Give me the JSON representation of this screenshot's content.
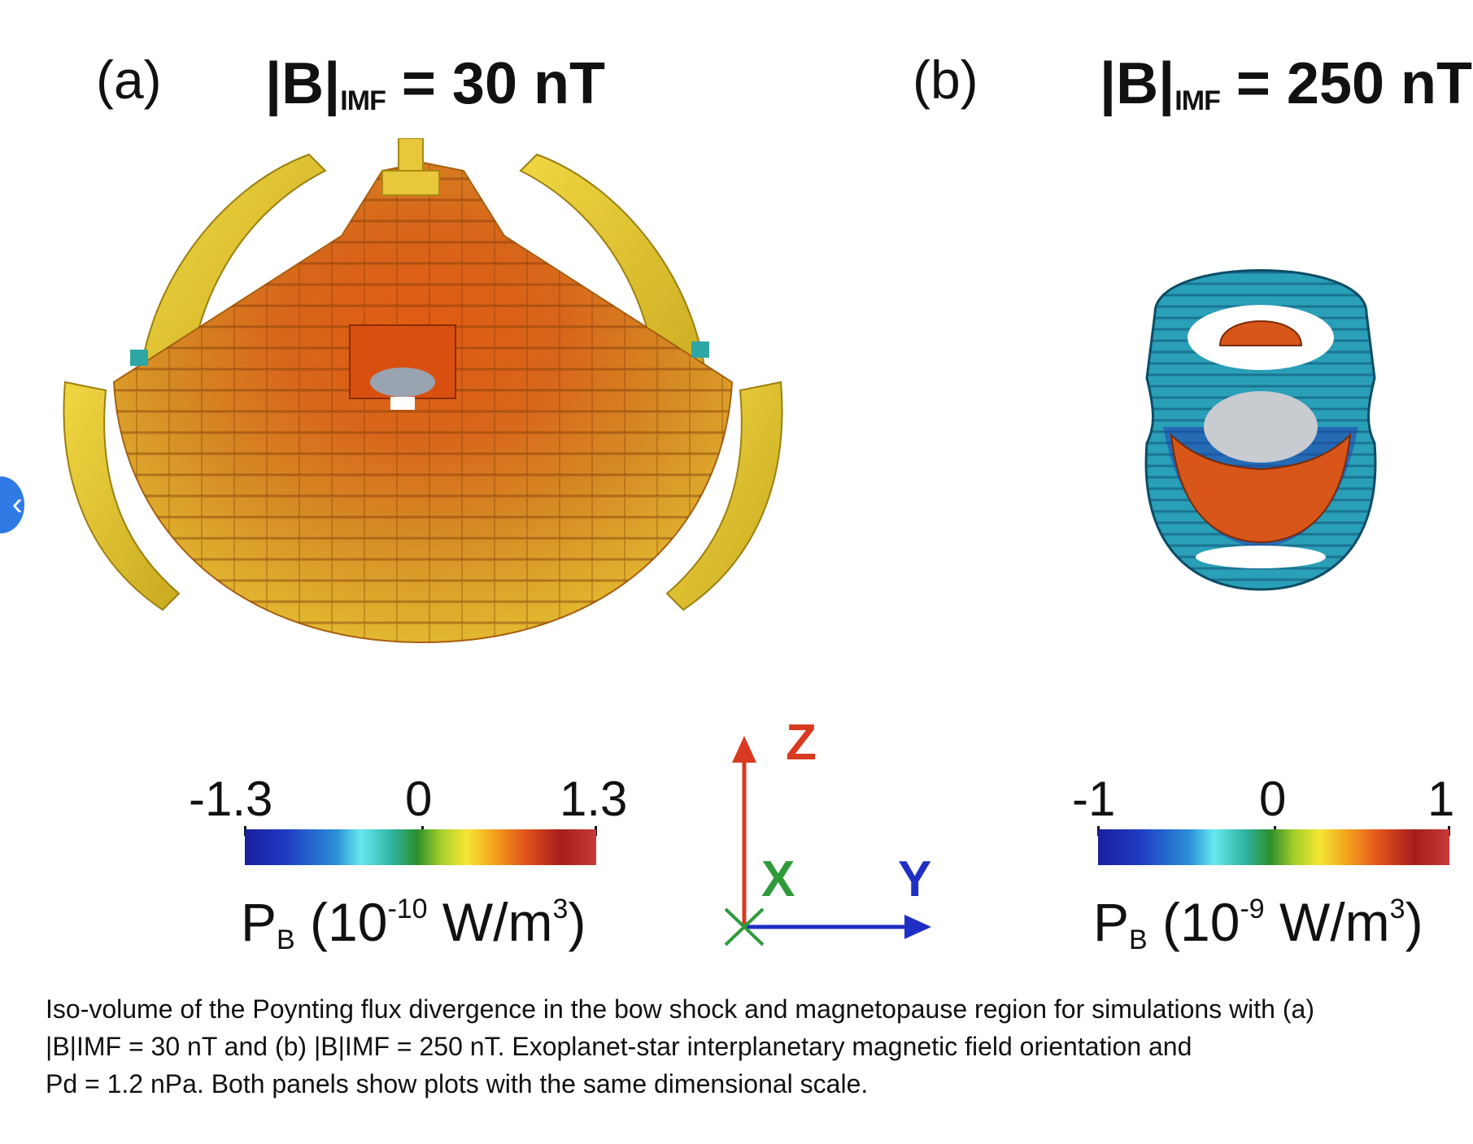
{
  "panel_a": {
    "letter": "(a)",
    "title_main": "|B|",
    "title_sub": "IMF",
    "title_rest": " = 30 nT",
    "colorbar": {
      "tick_min": "-1.3",
      "tick_mid": "0",
      "tick_max": "1.3",
      "label_main": "P",
      "label_sub": "B",
      "label_open": " (10",
      "label_exp": "-10",
      "label_unit": " W/m",
      "label_unit_exp": "3",
      "label_close": ")"
    }
  },
  "panel_b": {
    "letter": "(b)",
    "title_main": "|B|",
    "title_sub": "IMF",
    "title_rest": " = 250 nT",
    "colorbar": {
      "tick_min": "-1",
      "tick_mid": "0",
      "tick_max": "1",
      "label_main": "P",
      "label_sub": "B",
      "label_open": " (10",
      "label_exp": "-9",
      "label_unit": " W/m",
      "label_unit_exp": "3",
      "label_close": ")"
    }
  },
  "axes": {
    "z_label": "Z",
    "x_label": "X",
    "y_label": "Y",
    "z_color": "#d93a22",
    "x_color": "#2e9a3a",
    "y_color": "#1f2fc4"
  },
  "caption": {
    "line1": "Iso-volume of the Poynting flux divergence in the bow shock and magnetopause region for simulations with (a)",
    "line2": "|B|IMF = 30 nT and (b) |B|IMF = 250 nT. Exoplanet-star interplanetary magnetic field orientation and",
    "line3": "Pd = 1.2 nPa. Both panels show plots with the same dimensional scale."
  },
  "nav": {
    "icon": "chevron-left-icon",
    "glyph": "‹"
  }
}
